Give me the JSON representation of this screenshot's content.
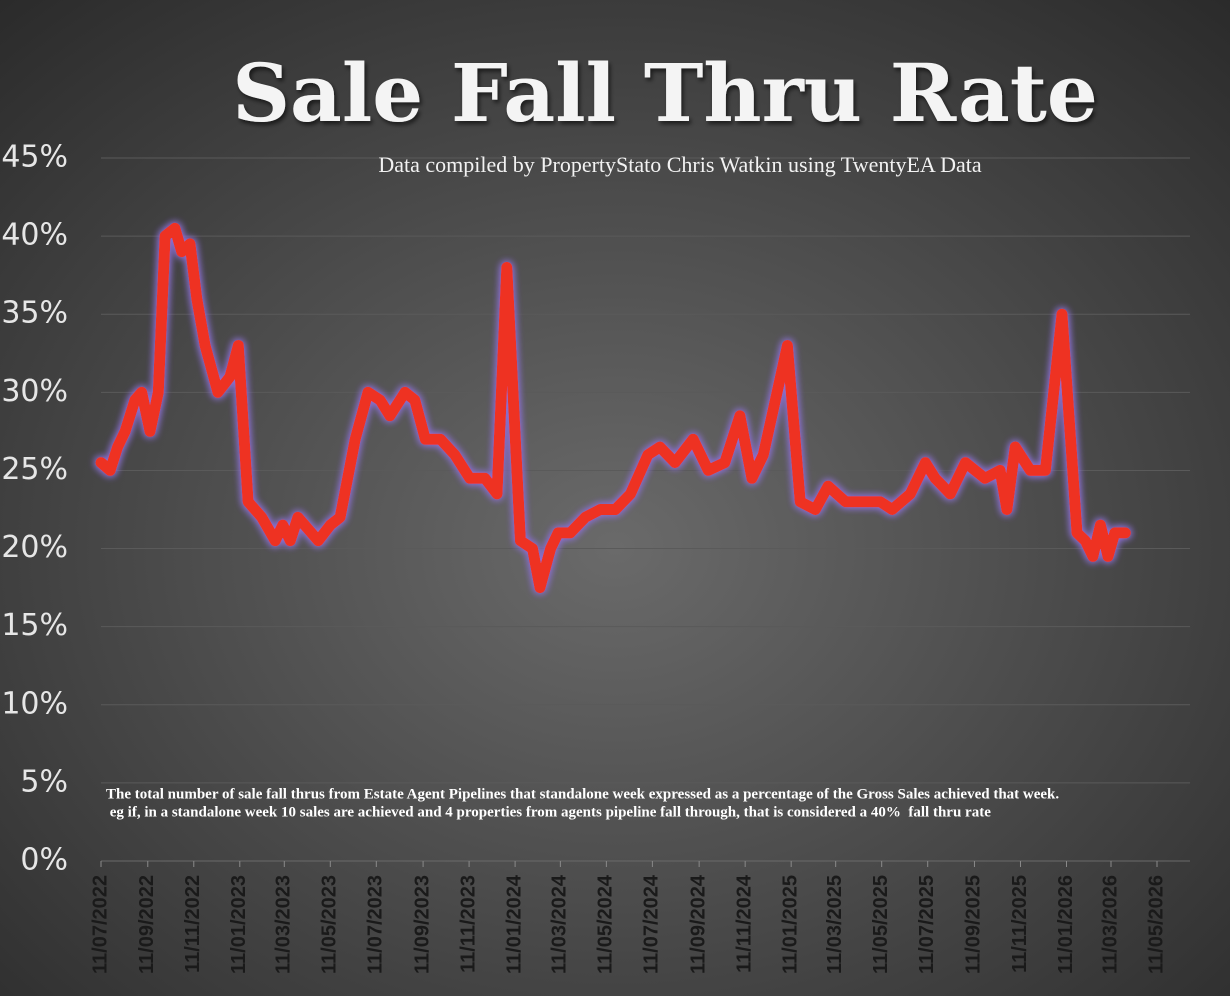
{
  "chart_data": {
    "type": "line",
    "title": "Sale Fall Thru Rate",
    "subtitle": "Data compiled by PropertyStato Chris Watkin using TwentyEA Data",
    "annotations": [
      "The total number of sale fall thrus from Estate Agent Pipelines that standalone week expressed as a percentage of the Gross Sales achieved that week.",
      " eg if, in a standalone week 10 sales are achieved and 4 properties from agents pipeline fall through, that is considered a 40%  fall thru rate"
    ],
    "x": [
      "11/07/2022",
      "23/07/2022",
      "02/08/2022",
      "12/08/2022",
      "25/08/2022",
      "03/09/2022",
      "14/09/2022",
      "25/09/2022",
      "04/10/2022",
      "17/10/2022",
      "26/10/2022",
      "06/11/2022",
      "15/11/2022",
      "26/11/2022",
      "13/12/2022",
      "29/12/2022",
      "09/01/2023",
      "22/01/2023",
      "09/02/2023",
      "27/02/2023",
      "09/03/2023",
      "19/03/2023",
      "29/03/2023",
      "07/04/2023",
      "25/04/2023",
      "11/05/2023",
      "24/05/2023",
      "13/06/2023",
      "30/06/2023",
      "16/07/2023",
      "29/07/2023",
      "18/08/2023",
      "31/08/2023",
      "14/09/2023",
      "04/10/2023",
      "23/10/2023",
      "12/11/2023",
      "02/12/2023",
      "18/12/2023",
      "31/12/2023",
      "18/01/2024",
      "03/02/2024",
      "13/02/2024",
      "27/02/2024",
      "08/03/2024",
      "24/03/2024",
      "13/04/2024",
      "03/05/2024",
      "23/05/2024",
      "12/06/2024",
      "05/07/2024",
      "21/07/2024",
      "10/08/2024",
      "03/09/2024",
      "23/09/2024",
      "15/10/2024",
      "04/11/2024",
      "20/11/2024",
      "05/12/2024",
      "06/01/2025",
      "23/01/2025",
      "12/02/2025",
      "01/03/2025",
      "24/03/2025",
      "15/04/2025",
      "09/05/2025",
      "25/05/2025",
      "18/06/2025",
      "08/07/2025",
      "21/07/2025",
      "10/08/2025",
      "30/08/2025",
      "25/09/2025",
      "15/10/2025",
      "24/10/2025",
      "04/11/2025",
      "24/11/2025",
      "14/12/2025",
      "05/01/2026",
      "25/01/2026",
      "05/02/2026",
      "15/02/2026",
      "25/02/2026",
      "07/03/2026",
      "16/03/2026",
      "30/03/2026"
    ],
    "series": [
      {
        "color": "#ee3124",
        "values": [
          25.5,
          25,
          26.5,
          27.5,
          29.5,
          30,
          27.5,
          30,
          40,
          40.5,
          39,
          39.5,
          36,
          33,
          30,
          31,
          33,
          23,
          22,
          20.5,
          21.5,
          20.5,
          22,
          21.5,
          20.5,
          21.5,
          22,
          27,
          30,
          29.5,
          28.5,
          30,
          29.5,
          27,
          27,
          26,
          24.5,
          24.5,
          23.5,
          38,
          20.5,
          20,
          17.5,
          20,
          21,
          21,
          22,
          22.5,
          22.5,
          23.5,
          26,
          26.5,
          25.5,
          27,
          25,
          25.5,
          28.5,
          24.5,
          26,
          33,
          23,
          22.5,
          24,
          23,
          23,
          23,
          22.5,
          23.5,
          25.5,
          24.5,
          23.5,
          25.5,
          24.5,
          25,
          22.5,
          26.5,
          25,
          25,
          35,
          21,
          20.5,
          19.5,
          21.5,
          19.5,
          21,
          21
        ]
      }
    ],
    "xlim": [
      "11/07/2022",
      "11/05/2026"
    ],
    "xticks": [
      "11/07/2022",
      "11/09/2022",
      "11/11/2022",
      "11/01/2023",
      "11/03/2023",
      "11/05/2023",
      "11/07/2023",
      "11/09/2023",
      "11/11/2023",
      "11/01/2024",
      "11/03/2024",
      "11/05/2024",
      "11/07/2024",
      "11/09/2024",
      "11/11/2024",
      "11/01/2025",
      "11/03/2025",
      "11/05/2025",
      "11/07/2025",
      "11/09/2025",
      "11/11/2025",
      "11/01/2026",
      "11/03/2026",
      "11/05/2026"
    ],
    "ylim": [
      0,
      45
    ],
    "yticks": [
      {
        "value": 0,
        "label": "0%"
      },
      {
        "value": 5,
        "label": "5%"
      },
      {
        "value": 10,
        "label": "10%"
      },
      {
        "value": 15,
        "label": "15%"
      },
      {
        "value": 20,
        "label": "20%"
      },
      {
        "value": 25,
        "label": "25%"
      },
      {
        "value": 30,
        "label": "30%"
      },
      {
        "value": 35,
        "label": "35%"
      },
      {
        "value": 40,
        "label": "40%"
      },
      {
        "value": 45,
        "label": "45%"
      }
    ],
    "grid": true
  }
}
